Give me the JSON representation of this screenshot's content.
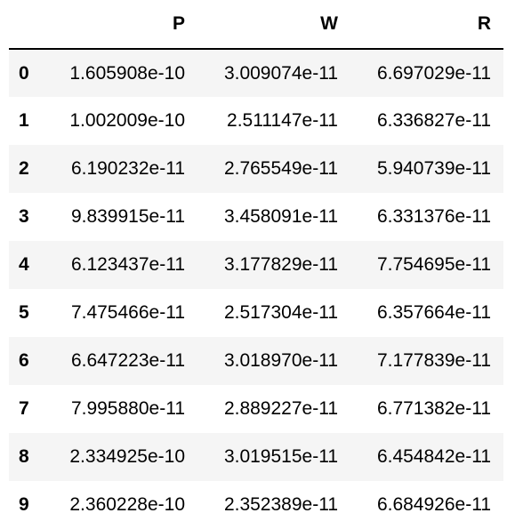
{
  "table": {
    "columns": [
      "",
      "P",
      "W",
      "R"
    ],
    "rows": [
      {
        "index": "0",
        "P": "1.605908e-10",
        "W": "3.009074e-11",
        "R": "6.697029e-11"
      },
      {
        "index": "1",
        "P": "1.002009e-10",
        "W": "2.511147e-11",
        "R": "6.336827e-11"
      },
      {
        "index": "2",
        "P": "6.190232e-11",
        "W": "2.765549e-11",
        "R": "5.940739e-11"
      },
      {
        "index": "3",
        "P": "9.839915e-11",
        "W": "3.458091e-11",
        "R": "6.331376e-11"
      },
      {
        "index": "4",
        "P": "6.123437e-11",
        "W": "3.177829e-11",
        "R": "7.754695e-11"
      },
      {
        "index": "5",
        "P": "7.475466e-11",
        "W": "2.517304e-11",
        "R": "6.357664e-11"
      },
      {
        "index": "6",
        "P": "6.647223e-11",
        "W": "3.018970e-11",
        "R": "7.177839e-11"
      },
      {
        "index": "7",
        "P": "7.995880e-11",
        "W": "2.889227e-11",
        "R": "6.771382e-11"
      },
      {
        "index": "8",
        "P": "2.334925e-10",
        "W": "3.019515e-11",
        "R": "6.454842e-11"
      },
      {
        "index": "9",
        "P": "2.360228e-10",
        "W": "2.352389e-11",
        "R": "6.684926e-11"
      }
    ]
  },
  "colors": {
    "stripe": "#f5f5f5",
    "background": "#ffffff",
    "header_rule": "#000000",
    "text": "#000000"
  }
}
